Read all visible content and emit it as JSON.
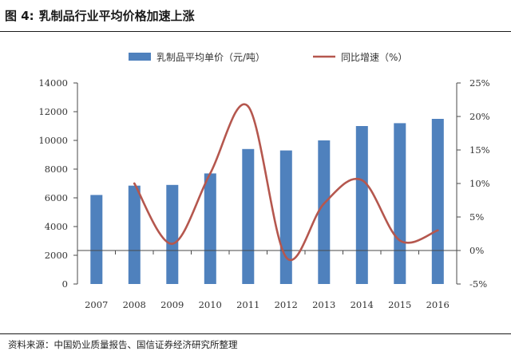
{
  "figure": {
    "label": "图 4:",
    "title": "乳制品行业平均价格加速上涨",
    "source": "资料来源：中国奶业质量报告、国信证券经济研究所整理"
  },
  "chart_data": {
    "type": "bar+line",
    "categories": [
      "2007",
      "2008",
      "2009",
      "2010",
      "2011",
      "2012",
      "2013",
      "2014",
      "2015",
      "2016"
    ],
    "series": [
      {
        "name": "乳制品平均单价（元/吨）",
        "type": "bar",
        "axis": "left",
        "color": "#4f81bd",
        "values": [
          6200,
          6850,
          6900,
          7700,
          9400,
          9300,
          10000,
          11000,
          11200,
          11500
        ]
      },
      {
        "name": "同比增速（%）",
        "type": "line",
        "axis": "right",
        "color": "#b5574e",
        "values": [
          null,
          10.0,
          1.0,
          11.5,
          21.5,
          -1.0,
          7.0,
          10.5,
          1.5,
          3.0
        ]
      }
    ],
    "y_left": {
      "min": 0,
      "max": 14000,
      "ticks": [
        "0",
        "2000",
        "4000",
        "6000",
        "8000",
        "10000",
        "12000",
        "14000"
      ]
    },
    "y_right": {
      "min": -5,
      "max": 25,
      "ticks": [
        "-5%",
        "0%",
        "5%",
        "10%",
        "15%",
        "20%",
        "25%"
      ]
    },
    "legend": "top",
    "grid": false
  }
}
